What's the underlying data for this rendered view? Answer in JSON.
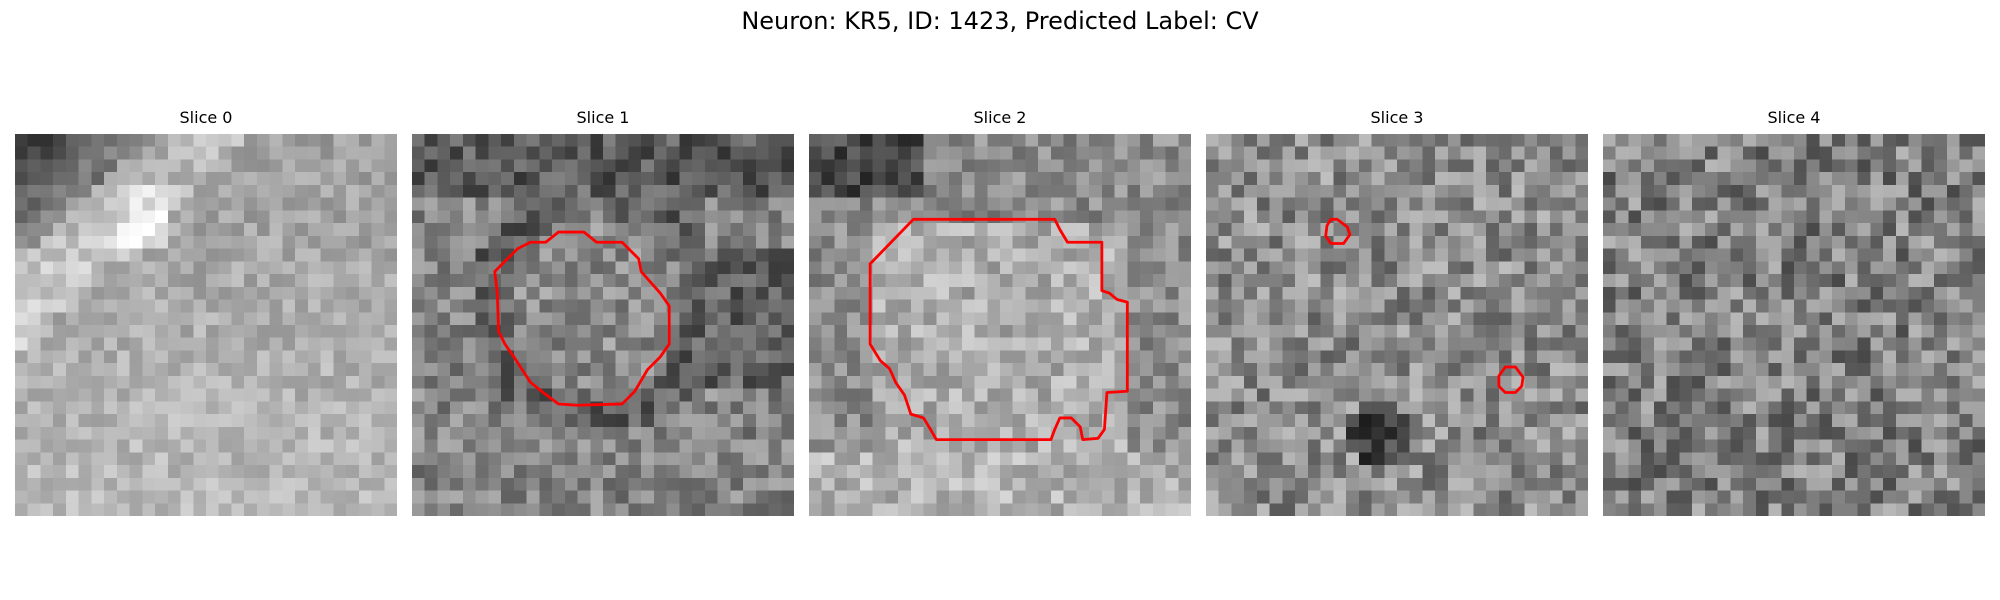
{
  "figure": {
    "title": "Neuron: KR5, ID: 1423, Predicted Label: CV"
  },
  "colormap": "gray",
  "contour_color": "#ff0000",
  "panels": [
    {
      "title": "Slice 0",
      "contours": []
    },
    {
      "title": "Slice 1",
      "contours": [
        "closed-outline"
      ]
    },
    {
      "title": "Slice 2",
      "contours": [
        "closed-outline"
      ]
    },
    {
      "title": "Slice 3",
      "contours": [
        "closed-outline",
        "closed-outline"
      ]
    },
    {
      "title": "Slice 4",
      "contours": []
    }
  ]
}
